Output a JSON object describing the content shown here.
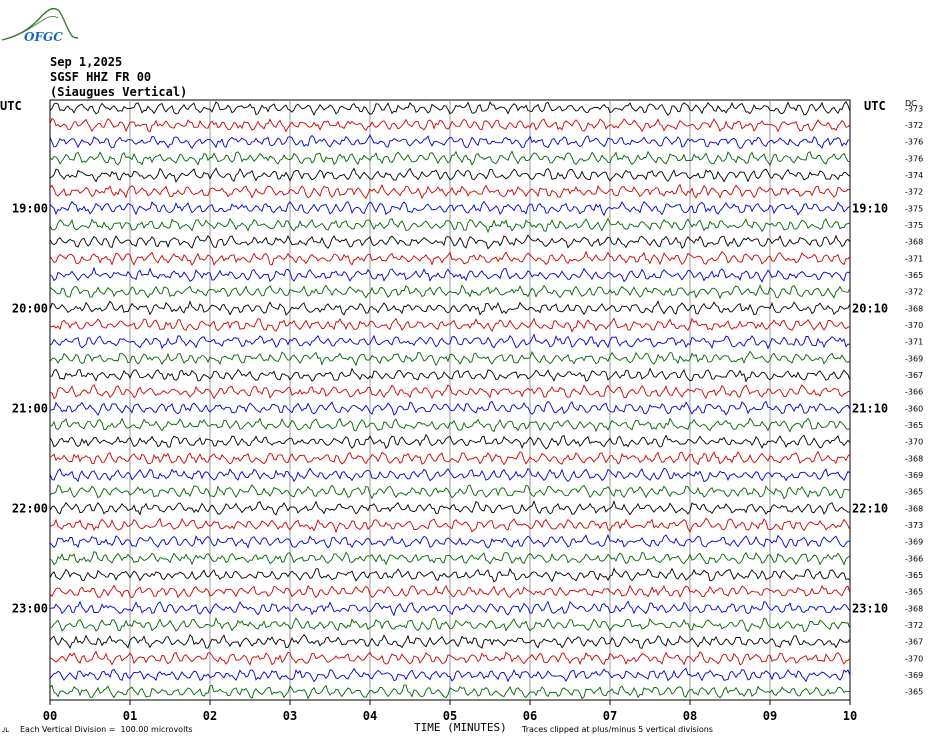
{
  "header": {
    "logo_text": "OFGC",
    "date": "Sep 1,2025",
    "station": "SGSF HHZ FR 00",
    "location": "(Siaugues Vertical)"
  },
  "colors": {
    "trace_cycle": [
      "#000000",
      "#cc0000",
      "#0000cc",
      "#006600"
    ],
    "grid": "#808080",
    "logo": "#2e7d32"
  },
  "chart_data": {
    "type": "line",
    "subtype": "helicorder",
    "left_axis_title": "UTC",
    "right_axis_title": "UTC",
    "dc_label": "DC",
    "xlabel": "TIME (MINUTES)",
    "xlim": [
      0,
      10
    ],
    "x_ticks": [
      "00",
      "01",
      "02",
      "03",
      "04",
      "05",
      "06",
      "07",
      "08",
      "09",
      "10"
    ],
    "left_hour_labels": [
      {
        "row": 6,
        "label": "19:00"
      },
      {
        "row": 12,
        "label": "20:00"
      },
      {
        "row": 18,
        "label": "21:00"
      },
      {
        "row": 24,
        "label": "22:00"
      },
      {
        "row": 30,
        "label": "23:00"
      }
    ],
    "right_hour_labels": [
      {
        "row": 6,
        "label": "19:10"
      },
      {
        "row": 12,
        "label": "20:10"
      },
      {
        "row": 18,
        "label": "21:10"
      },
      {
        "row": 24,
        "label": "22:10"
      },
      {
        "row": 30,
        "label": "23:10"
      }
    ],
    "dc_offsets": [
      -373,
      -372,
      -376,
      -376,
      -374,
      -372,
      -375,
      -375,
      -368,
      -371,
      -365,
      -372,
      -368,
      -370,
      -371,
      -369,
      -367,
      -366,
      -360,
      -365,
      -370,
      -368,
      -369,
      -365,
      -368,
      -373,
      -369,
      -366,
      -365,
      -365,
      -368,
      -372,
      -367,
      -370,
      -369,
      -365
    ],
    "trace_count": 36,
    "amplitude_divisions": 1.2,
    "grid": true,
    "footnote_left": "Each Vertical Division =  100.00 microvolts",
    "footnote_right": "Traces clipped at plus/minus 5 vertical divisions"
  }
}
